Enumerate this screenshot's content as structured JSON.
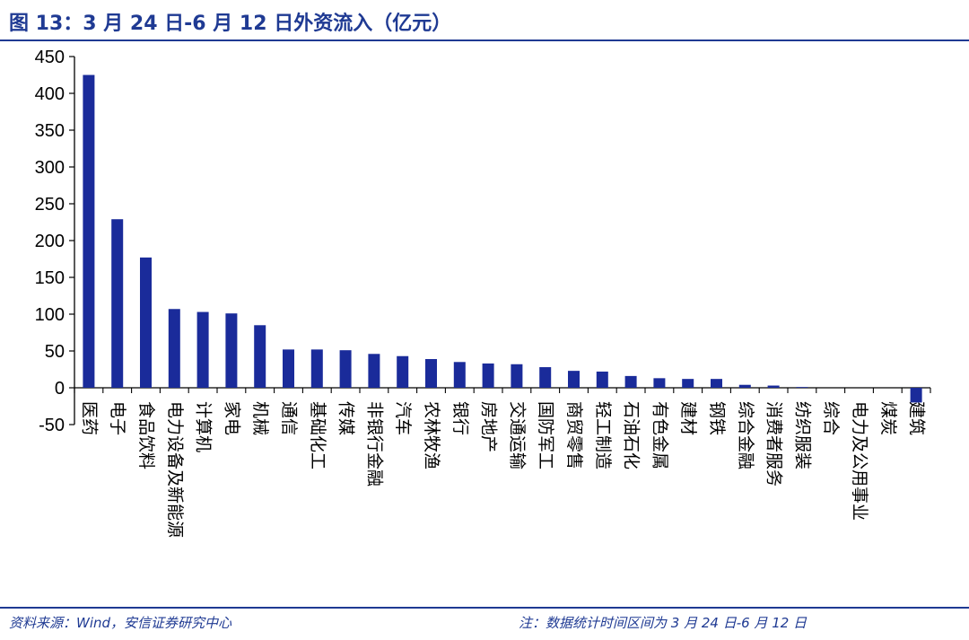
{
  "header": {
    "title": "图 13：3 月 24 日-6 月 12 日外资流入（亿元）"
  },
  "footer": {
    "source": "资料来源：Wind，安信证券研究中心",
    "note": "注：数据统计时间区间为 3 月 24 日-6 月 12 日"
  },
  "colors": {
    "bar": "#1a2b9a",
    "accent": "#1f3a93"
  },
  "chart_data": {
    "type": "bar",
    "title": "图 13：3 月 24 日-6 月 12 日外资流入（亿元）",
    "xlabel": "",
    "ylabel": "",
    "ylim": [
      -50,
      450
    ],
    "yticks": [
      -50,
      0,
      50,
      100,
      150,
      200,
      250,
      300,
      350,
      400,
      450
    ],
    "grid": false,
    "categories": [
      "医药",
      "电子",
      "食品饮料",
      "电力设备及新能源",
      "计算机",
      "家电",
      "机械",
      "通信",
      "基础化工",
      "传媒",
      "非银行金融",
      "汽车",
      "农林牧渔",
      "银行",
      "房地产",
      "交通运输",
      "国防军工",
      "商贸零售",
      "轻工制造",
      "石油石化",
      "有色金属",
      "建材",
      "钢铁",
      "综合金融",
      "消费者服务",
      "纺织服装",
      "综合",
      "电力及公用事业",
      "煤炭",
      "建筑"
    ],
    "values": [
      425,
      229,
      177,
      107,
      103,
      101,
      85,
      52,
      52,
      51,
      46,
      43,
      39,
      35,
      33,
      32,
      28,
      23,
      22,
      16,
      13,
      12,
      12,
      4,
      3,
      1,
      0,
      0,
      0,
      -20
    ]
  }
}
